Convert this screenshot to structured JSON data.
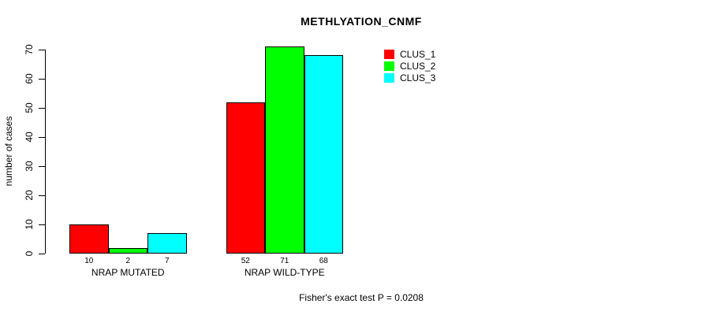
{
  "chart_data": {
    "type": "bar",
    "title": "METHLYATION_CNMF",
    "ylabel": "number of cases",
    "xlabel": "",
    "ylim": [
      0,
      70
    ],
    "yticks": [
      0,
      10,
      20,
      30,
      40,
      50,
      60,
      70
    ],
    "grid": false,
    "legend_position": "top-right",
    "bar_value_labels_shown": true,
    "categories": [
      "NRAP MUTATED",
      "NRAP WILD-TYPE"
    ],
    "series": [
      {
        "name": "CLUS_1",
        "color": "#ff0000",
        "values": [
          10,
          52
        ]
      },
      {
        "name": "CLUS_2",
        "color": "#00ff00",
        "values": [
          2,
          71
        ]
      },
      {
        "name": "CLUS_3",
        "color": "#00ffff",
        "values": [
          7,
          68
        ]
      }
    ],
    "annotation": "Fisher's exact test P = 0.0208"
  }
}
